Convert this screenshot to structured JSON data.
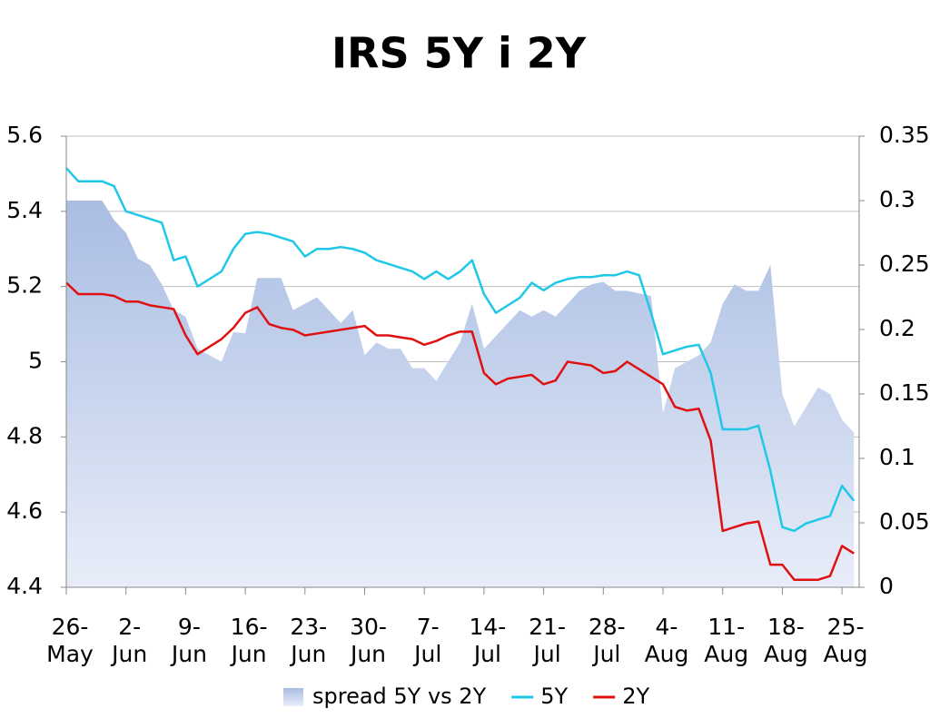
{
  "chart_data": {
    "type": "line",
    "title": "IRS 5Y i 2Y",
    "categories": [
      "26-\nMay",
      null,
      null,
      null,
      null,
      "2-\nJun",
      null,
      null,
      null,
      null,
      "9-\nJun",
      null,
      null,
      null,
      null,
      "16-\nJun",
      null,
      null,
      null,
      null,
      "23-\nJun",
      null,
      null,
      null,
      null,
      "30-\nJun",
      null,
      null,
      null,
      null,
      "7-\nJul",
      null,
      null,
      null,
      null,
      "14-\nJul",
      null,
      null,
      null,
      null,
      "21-\nJul",
      null,
      null,
      null,
      null,
      "28-\nJul",
      null,
      null,
      null,
      null,
      "4-\nAug",
      null,
      null,
      null,
      null,
      "11-\nAug",
      null,
      null,
      null,
      null,
      "18-\nAug",
      null,
      null,
      null,
      null,
      "25-\nAug",
      null
    ],
    "series": [
      {
        "name": "spread 5Y vs 2Y",
        "kind": "area",
        "axis": "y2",
        "color": "#a9bde3",
        "values": [
          0.3,
          0.3,
          0.3,
          0.3,
          0.285,
          0.275,
          0.255,
          0.25,
          0.235,
          0.215,
          0.21,
          0.185,
          0.18,
          0.175,
          0.198,
          0.197,
          0.24,
          0.24,
          0.24,
          0.215,
          0.22,
          0.225,
          0.215,
          0.205,
          0.215,
          0.18,
          0.19,
          0.185,
          0.185,
          0.17,
          0.17,
          0.16,
          0.175,
          0.19,
          0.22,
          0.185,
          0.195,
          0.205,
          0.215,
          0.21,
          0.215,
          0.21,
          0.22,
          0.23,
          0.235,
          0.237,
          0.23,
          0.23,
          0.228,
          0.226,
          0.135,
          0.17,
          0.175,
          0.18,
          0.19,
          0.22,
          0.235,
          0.23,
          0.23,
          0.25,
          0.15,
          0.125,
          0.14,
          0.155,
          0.15,
          0.13,
          0.12
        ]
      },
      {
        "name": "5Y",
        "kind": "line",
        "color": "#1ec8e6",
        "values": [
          5.515,
          5.48,
          5.48,
          5.48,
          5.467,
          5.4,
          5.39,
          5.38,
          5.37,
          5.27,
          5.28,
          5.2,
          5.22,
          5.24,
          5.3,
          5.34,
          5.345,
          5.34,
          5.33,
          5.32,
          5.28,
          5.3,
          5.3,
          5.305,
          5.3,
          5.29,
          5.27,
          5.26,
          5.25,
          5.24,
          5.22,
          5.24,
          5.22,
          5.24,
          5.27,
          5.18,
          5.13,
          5.15,
          5.17,
          5.21,
          5.19,
          5.21,
          5.22,
          5.225,
          5.225,
          5.23,
          5.23,
          5.24,
          5.23,
          5.13,
          5.02,
          5.03,
          5.04,
          5.045,
          4.97,
          4.82,
          4.82,
          4.82,
          4.83,
          4.71,
          4.56,
          4.55,
          4.57,
          4.58,
          4.59,
          4.67,
          4.63
        ]
      },
      {
        "name": "2Y",
        "kind": "line",
        "color": "#e01010",
        "values": [
          5.21,
          5.18,
          5.18,
          5.18,
          5.175,
          5.16,
          5.16,
          5.15,
          5.145,
          5.14,
          5.07,
          5.02,
          5.04,
          5.06,
          5.09,
          5.13,
          5.145,
          5.1,
          5.09,
          5.085,
          5.07,
          5.075,
          5.08,
          5.085,
          5.09,
          5.095,
          5.07,
          5.07,
          5.065,
          5.06,
          5.045,
          5.055,
          5.07,
          5.08,
          5.08,
          4.97,
          4.94,
          4.955,
          4.96,
          4.965,
          4.94,
          4.95,
          5.0,
          4.995,
          4.99,
          4.97,
          4.975,
          5.0,
          4.98,
          4.96,
          4.94,
          4.88,
          4.87,
          4.875,
          4.79,
          4.55,
          4.56,
          4.57,
          4.575,
          4.46,
          4.46,
          4.42,
          4.42,
          4.42,
          4.43,
          4.51,
          4.49
        ]
      }
    ],
    "ylim": [
      4.4,
      5.6
    ],
    "yticks": [
      4.4,
      4.6,
      4.8,
      5,
      5.2,
      5.4,
      5.6
    ],
    "y2lim": [
      0,
      0.35
    ],
    "y2ticks": [
      0,
      0.05,
      0.1,
      0.15,
      0.2,
      0.25,
      0.3,
      0.35
    ],
    "grid": true,
    "legend": "bottom"
  }
}
